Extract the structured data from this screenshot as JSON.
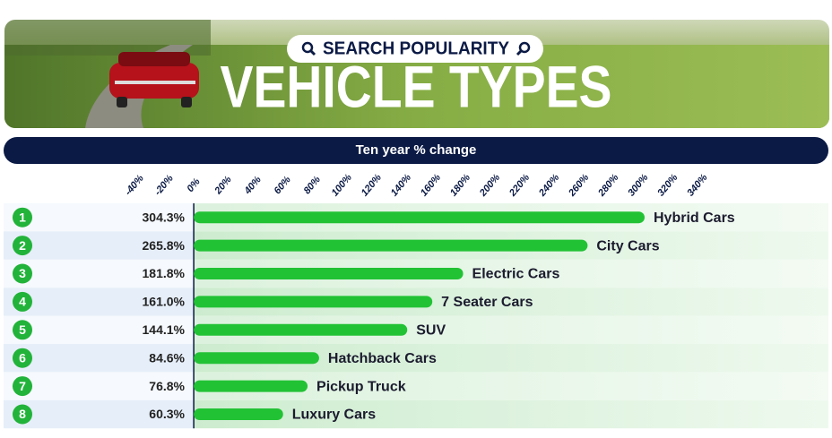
{
  "badge": "SEARCH POPULARITY",
  "title": "VEHICLE TYPES",
  "chart_data": {
    "type": "bar",
    "orientation": "horizontal",
    "subtitle": "Ten year % change",
    "color": "#22c235",
    "ranks": [
      1,
      2,
      3,
      4,
      5,
      6,
      7,
      8
    ],
    "categories": [
      "Hybrid Cars",
      "City Cars",
      "Electric Cars",
      "7 Seater Cars",
      "SUV",
      "Hatchback Cars",
      "Pickup Truck",
      "Luxury Cars"
    ],
    "values": [
      304.3,
      265.8,
      181.8,
      161.0,
      144.1,
      84.6,
      76.8,
      60.3
    ],
    "value_labels": [
      "304.3%",
      "265.8%",
      "181.8%",
      "161.0%",
      "144.1%",
      "84.6%",
      "76.8%",
      "60.3%"
    ],
    "xlim": [
      -40,
      340
    ],
    "xticks": [
      {
        "value": -40,
        "label": "-40%"
      },
      {
        "value": -20,
        "label": "-20%"
      },
      {
        "value": 0,
        "label": "0%"
      },
      {
        "value": 20,
        "label": "20%"
      },
      {
        "value": 40,
        "label": "40%"
      },
      {
        "value": 60,
        "label": "60%"
      },
      {
        "value": 80,
        "label": "80%"
      },
      {
        "value": 100,
        "label": "100%"
      },
      {
        "value": 120,
        "label": "120%"
      },
      {
        "value": 140,
        "label": "140%"
      },
      {
        "value": 160,
        "label": "160%"
      },
      {
        "value": 180,
        "label": "180%"
      },
      {
        "value": 200,
        "label": "200%"
      },
      {
        "value": 220,
        "label": "220%"
      },
      {
        "value": 240,
        "label": "240%"
      },
      {
        "value": 260,
        "label": "260%"
      },
      {
        "value": 280,
        "label": "280%"
      },
      {
        "value": 300,
        "label": "300%"
      },
      {
        "value": 320,
        "label": "320%"
      },
      {
        "value": 340,
        "label": "340%"
      }
    ]
  }
}
